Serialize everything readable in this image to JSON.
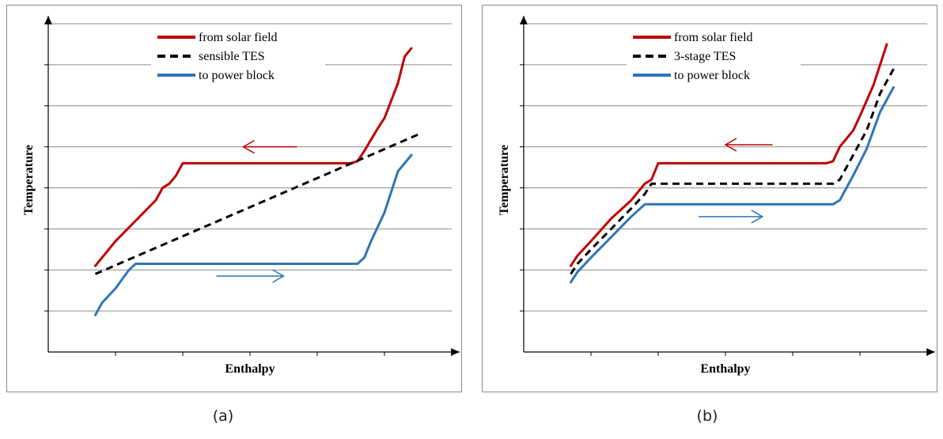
{
  "chart_data": [
    {
      "type": "line",
      "panel_label": "(a)",
      "xlabel": "Enthalpy",
      "ylabel": "Temperature",
      "xlim": [
        0,
        6
      ],
      "ylim": [
        0,
        8
      ],
      "grid": "horizontal",
      "legend_position": "top-center",
      "series": [
        {
          "name": "from solar field",
          "color": "#c00000",
          "style": "solid",
          "x": [
            0.7,
            0.8,
            1.0,
            1.3,
            1.6,
            1.7,
            1.8,
            1.9,
            2.0,
            4.5,
            4.6,
            4.7,
            4.9,
            5.0,
            5.2,
            5.3,
            5.4
          ],
          "y": [
            2.1,
            2.3,
            2.7,
            3.2,
            3.7,
            4.0,
            4.1,
            4.3,
            4.6,
            4.6,
            4.65,
            4.9,
            5.45,
            5.7,
            6.55,
            7.2,
            7.4
          ]
        },
        {
          "name": "sensible TES",
          "color": "#000000",
          "style": "dashed",
          "x": [
            0.7,
            5.5
          ],
          "y": [
            1.9,
            5.3
          ]
        },
        {
          "name": "to power block",
          "color": "#2e75b6",
          "style": "solid",
          "x": [
            0.7,
            0.8,
            1.0,
            1.2,
            1.3,
            4.6,
            4.7,
            4.8,
            5.0,
            5.2,
            5.4
          ],
          "y": [
            0.9,
            1.2,
            1.55,
            2.0,
            2.15,
            2.15,
            2.3,
            2.7,
            3.4,
            4.4,
            4.8
          ]
        }
      ],
      "arrows": [
        {
          "direction": "left",
          "color": "#c00000",
          "x": [
            2.9,
            3.7
          ],
          "y": 5.0
        },
        {
          "direction": "right",
          "color": "#2e75b6",
          "x": [
            2.5,
            3.5
          ],
          "y": 1.85
        }
      ]
    },
    {
      "type": "line",
      "panel_label": "(b)",
      "xlabel": "Enthalpy",
      "ylabel": "Temperature",
      "xlim": [
        0,
        6
      ],
      "ylim": [
        0,
        8
      ],
      "grid": "horizontal",
      "legend_position": "top-center",
      "series": [
        {
          "name": "from solar field",
          "color": "#c00000",
          "style": "solid",
          "x": [
            0.7,
            0.8,
            1.0,
            1.3,
            1.6,
            1.8,
            1.9,
            2.0,
            4.5,
            4.6,
            4.7,
            4.9,
            5.0,
            5.2,
            5.4
          ],
          "y": [
            2.1,
            2.35,
            2.7,
            3.25,
            3.7,
            4.1,
            4.2,
            4.6,
            4.6,
            4.65,
            5.0,
            5.4,
            5.75,
            6.5,
            7.5
          ]
        },
        {
          "name": "3-stage TES",
          "color": "#000000",
          "style": "dashed",
          "x": [
            0.7,
            0.8,
            1.0,
            1.3,
            1.6,
            1.8,
            1.9,
            4.6,
            4.7,
            4.9,
            5.1,
            5.3,
            5.5
          ],
          "y": [
            1.9,
            2.15,
            2.5,
            3.0,
            3.5,
            3.85,
            4.1,
            4.1,
            4.2,
            4.8,
            5.4,
            6.3,
            6.9
          ]
        },
        {
          "name": "to power block",
          "color": "#2e75b6",
          "style": "solid",
          "x": [
            0.7,
            0.8,
            1.0,
            1.3,
            1.6,
            1.8,
            1.9,
            4.6,
            4.7,
            4.9,
            5.1,
            5.3,
            5.5
          ],
          "y": [
            1.7,
            1.95,
            2.3,
            2.8,
            3.3,
            3.6,
            3.6,
            3.6,
            3.7,
            4.3,
            4.95,
            5.85,
            6.45
          ]
        }
      ],
      "arrows": [
        {
          "direction": "left",
          "color": "#c00000",
          "x": [
            3.0,
            3.7
          ],
          "y": 5.05
        },
        {
          "direction": "right",
          "color": "#2e75b6",
          "x": [
            2.6,
            3.55
          ],
          "y": 3.3
        }
      ]
    }
  ]
}
